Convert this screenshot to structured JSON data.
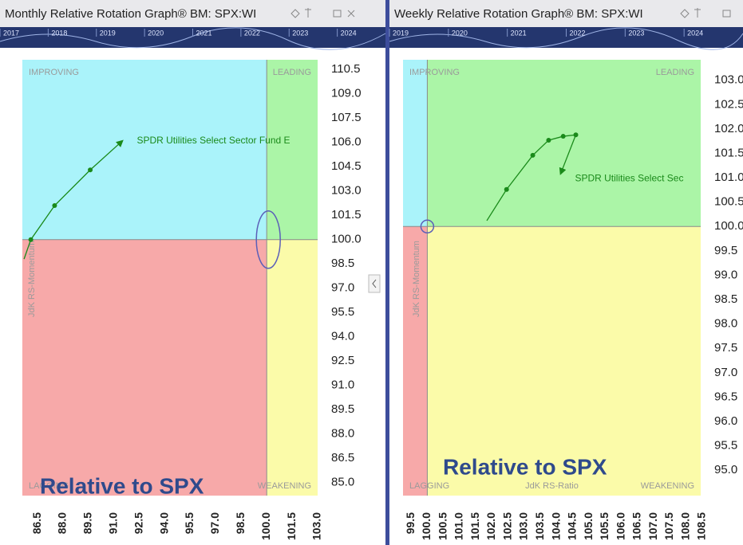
{
  "chart_data": [
    {
      "type": "line",
      "title": "Monthly Relative Rotation Graph® BM: SPX:WI",
      "timeline_years": [
        "2017",
        "2018",
        "2019",
        "2020",
        "2021",
        "2022",
        "2023",
        "2024"
      ],
      "quadrants": {
        "improving": "IMPROVING",
        "leading": "LEADING",
        "lagging": "LAGGING",
        "weakening": "WEAKENING"
      },
      "y_label": "JdK RS-Momentum",
      "annotation": "Relative to SPX",
      "benchmark_level": 100,
      "x": [
        85.7,
        86.1,
        87.5,
        89.6,
        91.5
      ],
      "series": [
        {
          "name": "SPDR Utilities Select Sector Fund E",
          "color": "#1a8a1a",
          "values": [
            98.8,
            100.0,
            102.1,
            104.3,
            106.1
          ]
        }
      ],
      "xlim": [
        85.6,
        103.0
      ],
      "ylim": [
        84.2,
        111.1
      ],
      "xticks": [
        86.5,
        {
          "value": 88,
          "label": "88.0"
        },
        89.5,
        {
          "value": 91,
          "label": "91.0"
        },
        92.5,
        {
          "value": 94,
          "label": "94.0"
        },
        95.5,
        {
          "value": 97,
          "label": "97.0"
        },
        98.5,
        {
          "value": 100,
          "label": "100.0"
        },
        101.5,
        {
          "value": 103,
          "label": "103.0"
        }
      ],
      "yticks": [
        110.5,
        {
          "value": 109,
          "label": "109.0"
        },
        107.5,
        {
          "value": 106,
          "label": "106.0"
        },
        104.5,
        {
          "value": 103,
          "label": "103.0"
        },
        101.5,
        {
          "value": 100,
          "label": "100.0"
        },
        98.5,
        {
          "value": 97,
          "label": "97.0"
        },
        95.5,
        {
          "value": 94,
          "label": "94.0"
        },
        92.5,
        {
          "value": 91,
          "label": "91.0"
        },
        89.5,
        {
          "value": 88,
          "label": "88.0"
        },
        86.5,
        {
          "value": 85,
          "label": "85.0"
        }
      ]
    },
    {
      "type": "line",
      "title": "Weekly Relative Rotation Graph® BM: SPX:WI",
      "timeline_years": [
        "2019",
        "2020",
        "2021",
        "2022",
        "2023",
        "2024"
      ],
      "quadrants": {
        "improving": "IMPROVING",
        "leading": "LEADING",
        "lagging": "LAGGING",
        "weakening": "WEAKENING"
      },
      "y_label": "JdK RS-Momentum",
      "x_label": "JdK RS-Ratio",
      "annotation": "Relative to SPX",
      "benchmark_level": 100,
      "x": [
        101.84,
        102.45,
        103.26,
        103.75,
        104.2,
        104.59,
        104.12
      ],
      "series": [
        {
          "name": "SPDR Utilities Select Sec",
          "color": "#1a8a1a",
          "values": [
            100.12,
            100.76,
            101.46,
            101.77,
            101.85,
            101.88,
            101.08
          ]
        }
      ],
      "xlim": [
        99.25,
        108.45
      ],
      "ylim": [
        94.48,
        103.42
      ],
      "xticks": [
        99.5,
        {
          "value": 100,
          "label": "100.0"
        },
        100.5,
        {
          "value": 101,
          "label": "101.0"
        },
        101.5,
        {
          "value": 102,
          "label": "102.0"
        },
        102.5,
        {
          "value": 103,
          "label": "103.0"
        },
        103.5,
        {
          "value": 104,
          "label": "104.0"
        },
        104.5,
        {
          "value": 105,
          "label": "105.0"
        },
        105.5,
        {
          "value": 106,
          "label": "106.0"
        },
        106.5,
        {
          "value": 107,
          "label": "107.0"
        },
        107.5,
        {
          "value": 108,
          "label": "108.0"
        },
        108.5
      ],
      "yticks": [
        {
          "value": 103,
          "label": "103.0"
        },
        102.5,
        {
          "value": 102,
          "label": "102.0"
        },
        101.5,
        {
          "value": 101,
          "label": "101.0"
        },
        100.5,
        {
          "value": 100,
          "label": "100.0"
        },
        99.5,
        {
          "value": 99,
          "label": "99.0"
        },
        98.5,
        {
          "value": 98,
          "label": "98.0"
        },
        97.5,
        {
          "value": 97,
          "label": "97.0"
        },
        96.5,
        {
          "value": 96,
          "label": "96.0"
        },
        95.5,
        {
          "value": 95,
          "label": "95.0"
        }
      ]
    }
  ]
}
